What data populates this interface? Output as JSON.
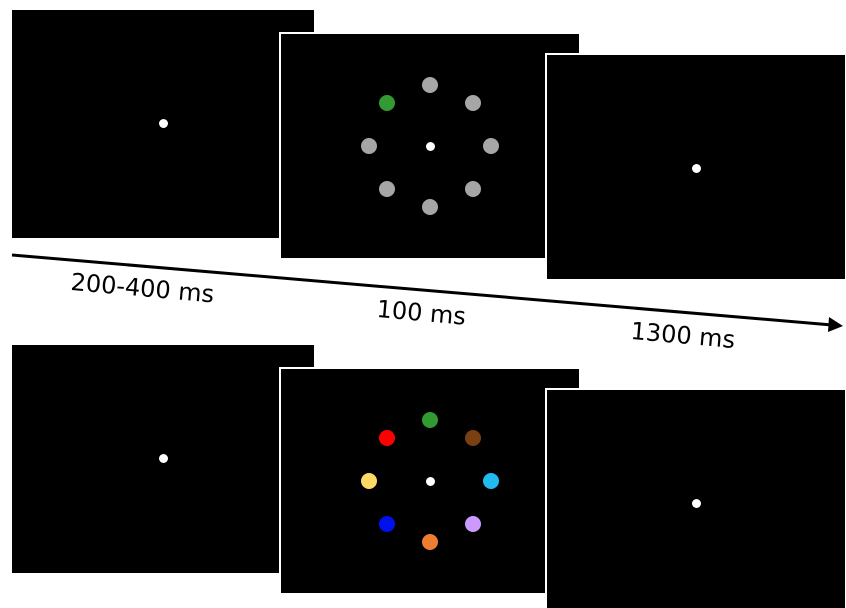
{
  "timeline": {
    "labels": [
      "200-400 ms",
      "100 ms",
      "1300 ms"
    ]
  },
  "colors": {
    "background": "#000000",
    "fixation": "#ffffff",
    "gray_item": "#a6a6a6",
    "green": "#339933",
    "red": "#ff0000",
    "brown": "#7a3f12",
    "yellow": "#ffd966",
    "cyan": "#22bbee",
    "blue": "#0011ee",
    "orange": "#ed7d31",
    "violet": "#cc99ff"
  },
  "trial_top": {
    "array_items": [
      "gray_item",
      "gray_item",
      "gray_item",
      "gray_item",
      "gray_item",
      "gray_item",
      "gray_item",
      "green"
    ]
  },
  "trial_bottom": {
    "array_items": [
      "green",
      "brown",
      "cyan",
      "violet",
      "orange",
      "blue",
      "yellow",
      "red"
    ]
  }
}
